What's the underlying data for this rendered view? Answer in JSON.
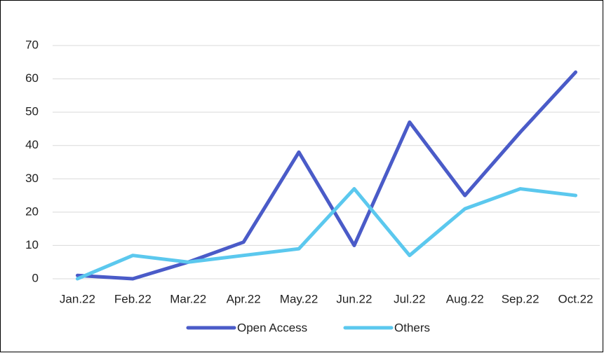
{
  "chart_data": {
    "type": "line",
    "categories": [
      "Jan.22",
      "Feb.22",
      "Mar.22",
      "Apr.22",
      "May.22",
      "Jun.22",
      "Jul.22",
      "Aug.22",
      "Sep.22",
      "Oct.22"
    ],
    "series": [
      {
        "name": "Open Access",
        "color": "#4a5bc8",
        "values": [
          1,
          0,
          5,
          11,
          38,
          10,
          47,
          25,
          44,
          62
        ]
      },
      {
        "name": "Others",
        "color": "#5bc8ee",
        "values": [
          0,
          7,
          5,
          7,
          9,
          27,
          7,
          21,
          27,
          25
        ]
      }
    ],
    "ylim": [
      0,
      70
    ],
    "yticks": [
      0,
      10,
      20,
      30,
      40,
      50,
      60,
      70
    ],
    "grid": true,
    "legend": "bottom"
  }
}
